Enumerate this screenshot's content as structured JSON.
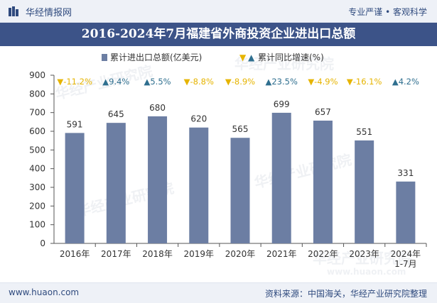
{
  "header": {
    "site_name": "华经情报网",
    "slogan": "专业严谨 • 客观科学"
  },
  "watermark": "华经产业研究院",
  "watermark_url": "www.huaon.com",
  "footer": {
    "url": "www.huaon.com",
    "source": "资料来源：中国海关，华经产业研究院整理"
  },
  "colors": {
    "bar": "#6c7ea3",
    "title_band": "#3c5388",
    "up": "#2f6f8f",
    "down": "#e6b400"
  },
  "chart_data": {
    "type": "bar",
    "title": "2016-2024年7月福建省外商投资企业进出口总额",
    "categories": [
      "2016年",
      "2017年",
      "2018年",
      "2019年",
      "2020年",
      "2021年",
      "2022年",
      "2023年",
      "2024年\n1-7月"
    ],
    "series": [
      {
        "name": "累计进出口总额(亿美元)",
        "values": [
          591,
          645,
          680,
          620,
          565,
          699,
          657,
          551,
          331
        ]
      },
      {
        "name": "累计同比增速(%)",
        "values": [
          -11.2,
          9.4,
          5.5,
          -8.8,
          -8.9,
          23.5,
          -4.9,
          -16.1,
          4.2
        ],
        "labels": [
          "-11.2%",
          "9.4%",
          "5.5%",
          "-8.8%",
          "-8.9%",
          "23.5%",
          "-4.9%",
          "-16.1%",
          "4.2%"
        ]
      }
    ],
    "legend": {
      "bar_label": "累计进出口总额(亿美元)",
      "growth_label": "累计同比增速(%)"
    },
    "ylim": [
      0,
      900
    ],
    "yticks": [
      0,
      100,
      200,
      300,
      400,
      500,
      600,
      700,
      800,
      900
    ],
    "xlabel": "",
    "ylabel": ""
  }
}
